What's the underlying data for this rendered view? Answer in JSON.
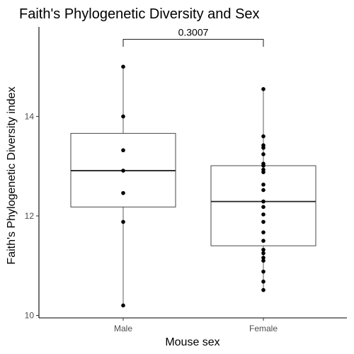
{
  "chart_data": {
    "type": "box",
    "title": "Faith's Phylogenetic Diversity and Sex",
    "xlabel": "Mouse sex",
    "ylabel": "Faith's Phylogenetic Diversity index",
    "categories": [
      "Male",
      "Female"
    ],
    "ylim": [
      9.95,
      15.8
    ],
    "yticks": [
      10,
      12,
      14
    ],
    "grid": false,
    "boxes": [
      {
        "category": "Male",
        "whisker_low": 10.2,
        "q1": 12.18,
        "median": 12.91,
        "q3": 13.66,
        "whisker_high": 15.0
      },
      {
        "category": "Female",
        "whisker_low": 10.51,
        "q1": 11.4,
        "median": 12.29,
        "q3": 13.01,
        "whisker_high": 14.55
      }
    ],
    "points": [
      {
        "category": "Male",
        "values": [
          15.0,
          14.0,
          13.32,
          12.91,
          12.46,
          11.88,
          10.2
        ]
      },
      {
        "category": "Female",
        "values": [
          14.55,
          13.6,
          13.42,
          13.37,
          13.24,
          13.05,
          13.01,
          12.93,
          12.88,
          12.63,
          12.52,
          12.29,
          12.18,
          12.03,
          11.88,
          11.67,
          11.5,
          11.32,
          11.25,
          11.16,
          11.1,
          10.88,
          10.68,
          10.51
        ]
      }
    ],
    "annotation": {
      "from": "Male",
      "to": "Female",
      "label": "0.3007",
      "y": 15.55,
      "tick_down_to": 15.4
    }
  }
}
